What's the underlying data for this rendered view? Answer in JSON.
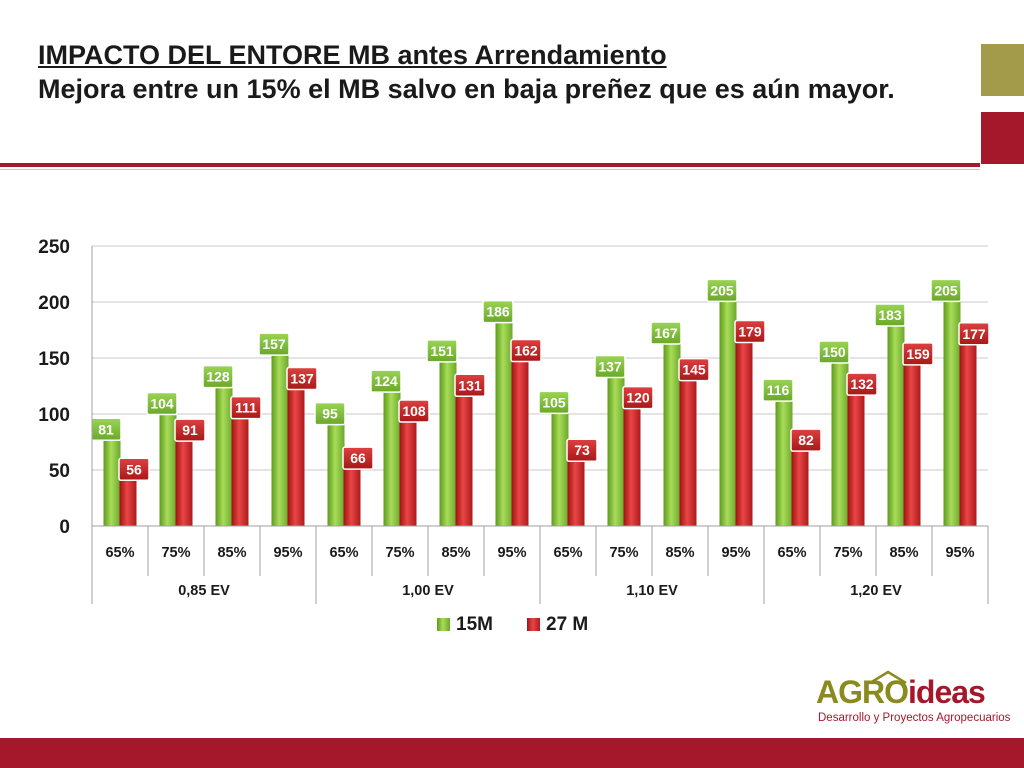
{
  "slide": {
    "title": "IMPACTO DEL ENTORE MB antes Arrendamiento",
    "subtitle": "Mejora entre un 15% el MB salvo en baja preñez que es aún mayor.",
    "accent_colors": {
      "olive": "#a39a4a",
      "crimson": "#a5182b"
    }
  },
  "logo": {
    "brand_part1": "AGRO",
    "brand_part2": "ideas",
    "tagline": "Desarrollo y Proyectos Agropecuarios"
  },
  "chart_data": {
    "type": "bar",
    "ylim": [
      0,
      250
    ],
    "yticks": [
      0,
      50,
      100,
      150,
      200,
      250
    ],
    "grid": true,
    "legend_position": "bottom",
    "groups": [
      {
        "label": "0,85 EV",
        "categories": [
          "65%",
          "75%",
          "85%",
          "95%"
        ]
      },
      {
        "label": "1,00 EV",
        "categories": [
          "65%",
          "75%",
          "85%",
          "95%"
        ]
      },
      {
        "label": "1,10 EV",
        "categories": [
          "65%",
          "75%",
          "85%",
          "95%"
        ]
      },
      {
        "label": "1,20 EV",
        "categories": [
          "65%",
          "75%",
          "85%",
          "95%"
        ]
      }
    ],
    "series": [
      {
        "name": "15M",
        "color": "#8cc63f",
        "values": [
          81,
          104,
          128,
          157,
          95,
          124,
          151,
          186,
          105,
          137,
          167,
          205,
          116,
          150,
          183,
          205
        ]
      },
      {
        "name": "27 M",
        "color": "#d42b2b",
        "values": [
          56,
          91,
          111,
          137,
          66,
          108,
          131,
          162,
          73,
          120,
          145,
          179,
          82,
          132,
          159,
          177
        ]
      }
    ]
  }
}
